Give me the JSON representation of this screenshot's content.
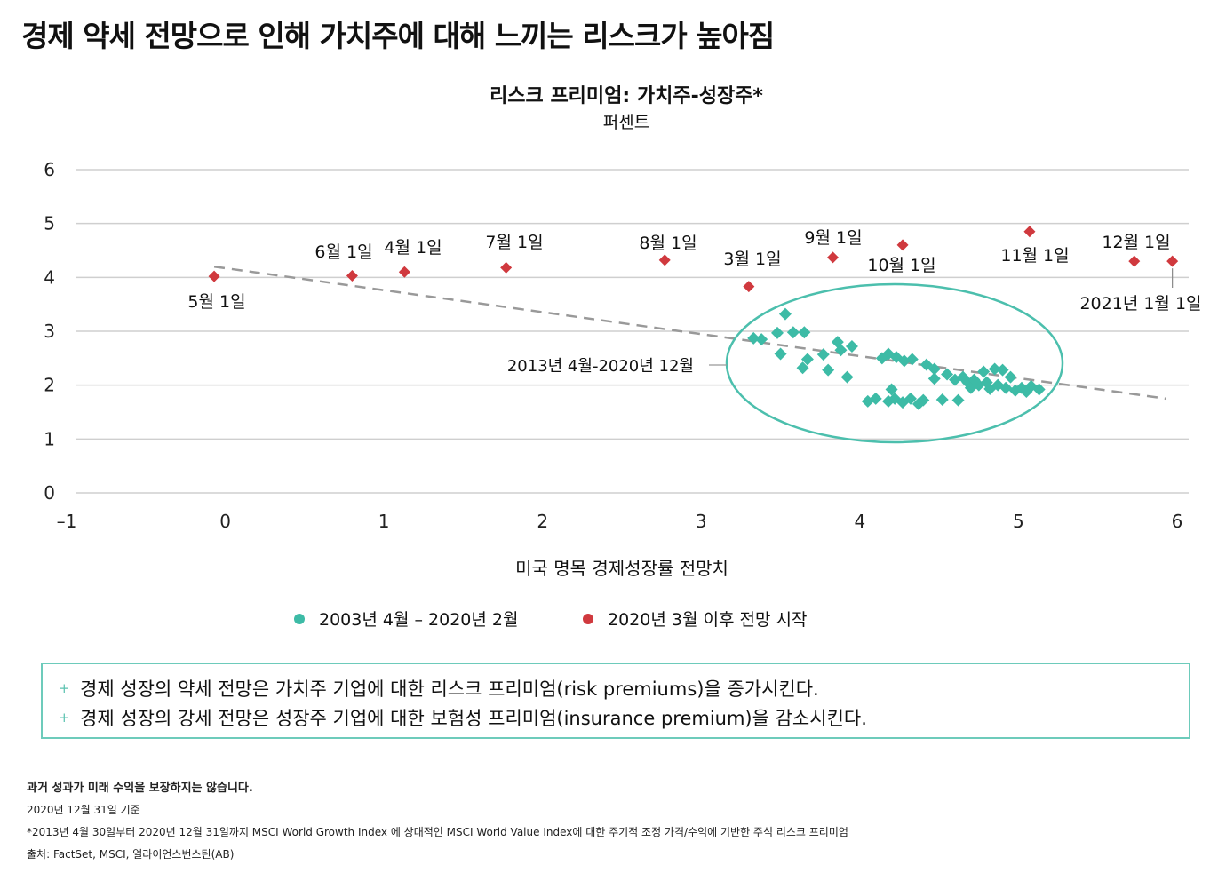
{
  "headline": "경제 약세 전망으로 인해 가치주에 대해 느끼는 리스크가 높아짐",
  "chart_data": {
    "type": "scatter",
    "title": "리스크 프리미엄: 가치주-성장주*",
    "subtitle": "퍼센트",
    "xlabel": "미국 명목 경제성장률 전망치",
    "xlim": [
      -1,
      6
    ],
    "ylim": [
      0,
      6
    ],
    "x_ticks": [
      "–1",
      "0",
      "1",
      "2",
      "3",
      "4",
      "5",
      "6"
    ],
    "y_ticks": [
      "0",
      "1",
      "2",
      "3",
      "4",
      "5",
      "6"
    ],
    "grid": "horizontal",
    "legend_position": "bottom",
    "colors": {
      "historical": "#3dbba6",
      "recent": "#d0393e",
      "trend": "#999999",
      "ellipse": "#4cbfad"
    },
    "trendline": {
      "x": [
        -0.07,
        5.93
      ],
      "y": [
        4.2,
        1.75
      ]
    },
    "ellipse_label": "2013년 4월-2020년 12월",
    "series": [
      {
        "name": "2003년 4월 – 2020년 2월",
        "marker": "diamond",
        "points": [
          [
            3.33,
            2.87
          ],
          [
            3.38,
            2.85
          ],
          [
            3.48,
            2.97
          ],
          [
            3.5,
            2.58
          ],
          [
            3.53,
            3.32
          ],
          [
            3.58,
            2.98
          ],
          [
            3.64,
            2.32
          ],
          [
            3.65,
            2.98
          ],
          [
            3.67,
            2.48
          ],
          [
            3.77,
            2.57
          ],
          [
            3.8,
            2.28
          ],
          [
            3.86,
            2.8
          ],
          [
            3.88,
            2.65
          ],
          [
            3.92,
            2.15
          ],
          [
            3.95,
            2.72
          ],
          [
            4.05,
            1.7
          ],
          [
            4.1,
            1.75
          ],
          [
            4.14,
            2.5
          ],
          [
            4.18,
            1.7
          ],
          [
            4.18,
            2.58
          ],
          [
            4.2,
            1.92
          ],
          [
            4.22,
            1.75
          ],
          [
            4.23,
            2.52
          ],
          [
            4.27,
            1.68
          ],
          [
            4.28,
            2.45
          ],
          [
            4.32,
            1.75
          ],
          [
            4.33,
            2.48
          ],
          [
            4.37,
            1.65
          ],
          [
            4.4,
            1.72
          ],
          [
            4.42,
            2.38
          ],
          [
            4.47,
            2.3
          ],
          [
            4.47,
            2.12
          ],
          [
            4.52,
            1.73
          ],
          [
            4.55,
            2.2
          ],
          [
            4.6,
            2.1
          ],
          [
            4.62,
            1.72
          ],
          [
            4.65,
            2.15
          ],
          [
            4.68,
            2.05
          ],
          [
            4.7,
            1.95
          ],
          [
            4.72,
            2.1
          ],
          [
            4.75,
            2.0
          ],
          [
            4.78,
            2.25
          ],
          [
            4.8,
            2.05
          ],
          [
            4.82,
            1.93
          ],
          [
            4.85,
            2.3
          ],
          [
            4.87,
            2.0
          ],
          [
            4.9,
            2.28
          ],
          [
            4.92,
            1.95
          ],
          [
            4.95,
            2.15
          ],
          [
            4.98,
            1.9
          ],
          [
            5.02,
            1.95
          ],
          [
            5.05,
            1.88
          ],
          [
            5.08,
            1.98
          ],
          [
            5.13,
            1.92
          ]
        ]
      },
      {
        "name": "2020년 3월 이후 전망 시작",
        "marker": "diamond",
        "points": [
          {
            "label": "5월 1일",
            "x": -0.07,
            "y": 4.02
          },
          {
            "label": "6월 1일",
            "x": 0.8,
            "y": 4.03
          },
          {
            "label": "4월 1일",
            "x": 1.13,
            "y": 4.1
          },
          {
            "label": "7월 1일",
            "x": 1.77,
            "y": 4.18
          },
          {
            "label": "8월 1일",
            "x": 2.77,
            "y": 4.32
          },
          {
            "label": "3월 1일",
            "x": 3.3,
            "y": 3.83
          },
          {
            "label": "9월 1일",
            "x": 3.83,
            "y": 4.37
          },
          {
            "label": "10월 1일",
            "x": 4.27,
            "y": 4.6
          },
          {
            "label": "11월 1일",
            "x": 5.07,
            "y": 4.85
          },
          {
            "label": "12월 1일",
            "x": 5.73,
            "y": 4.3
          },
          {
            "label": "2021년 1월 1일",
            "x": 5.97,
            "y": 4.3
          }
        ]
      }
    ]
  },
  "notes": {
    "line1": "경제 성장의 약세 전망은 가치주 기업에 대한 리스크 프리미엄(risk premiums)을 증가시킨다.",
    "line2": "경제 성장의 강세 전망은 성장주 기업에 대한 보험성 프리미엄(insurance premium)을 감소시킨다.",
    "bullet": "+"
  },
  "footnotes": {
    "disclaimer": "과거 성과가 미래 수익을 보장하지는 않습니다.",
    "date": "2020년 12월 31일 기준",
    "method": "*2013년 4월 30일부터 2020년 12월 31일까지 MSCI World Growth Index 에 상대적인 MSCI World Value Index에 대한 주기적 조정 가격/수익에 기반한 주식 리스크 프리미엄",
    "source": "출처: FactSet, MSCI, 얼라이언스번스틴(AB)"
  }
}
